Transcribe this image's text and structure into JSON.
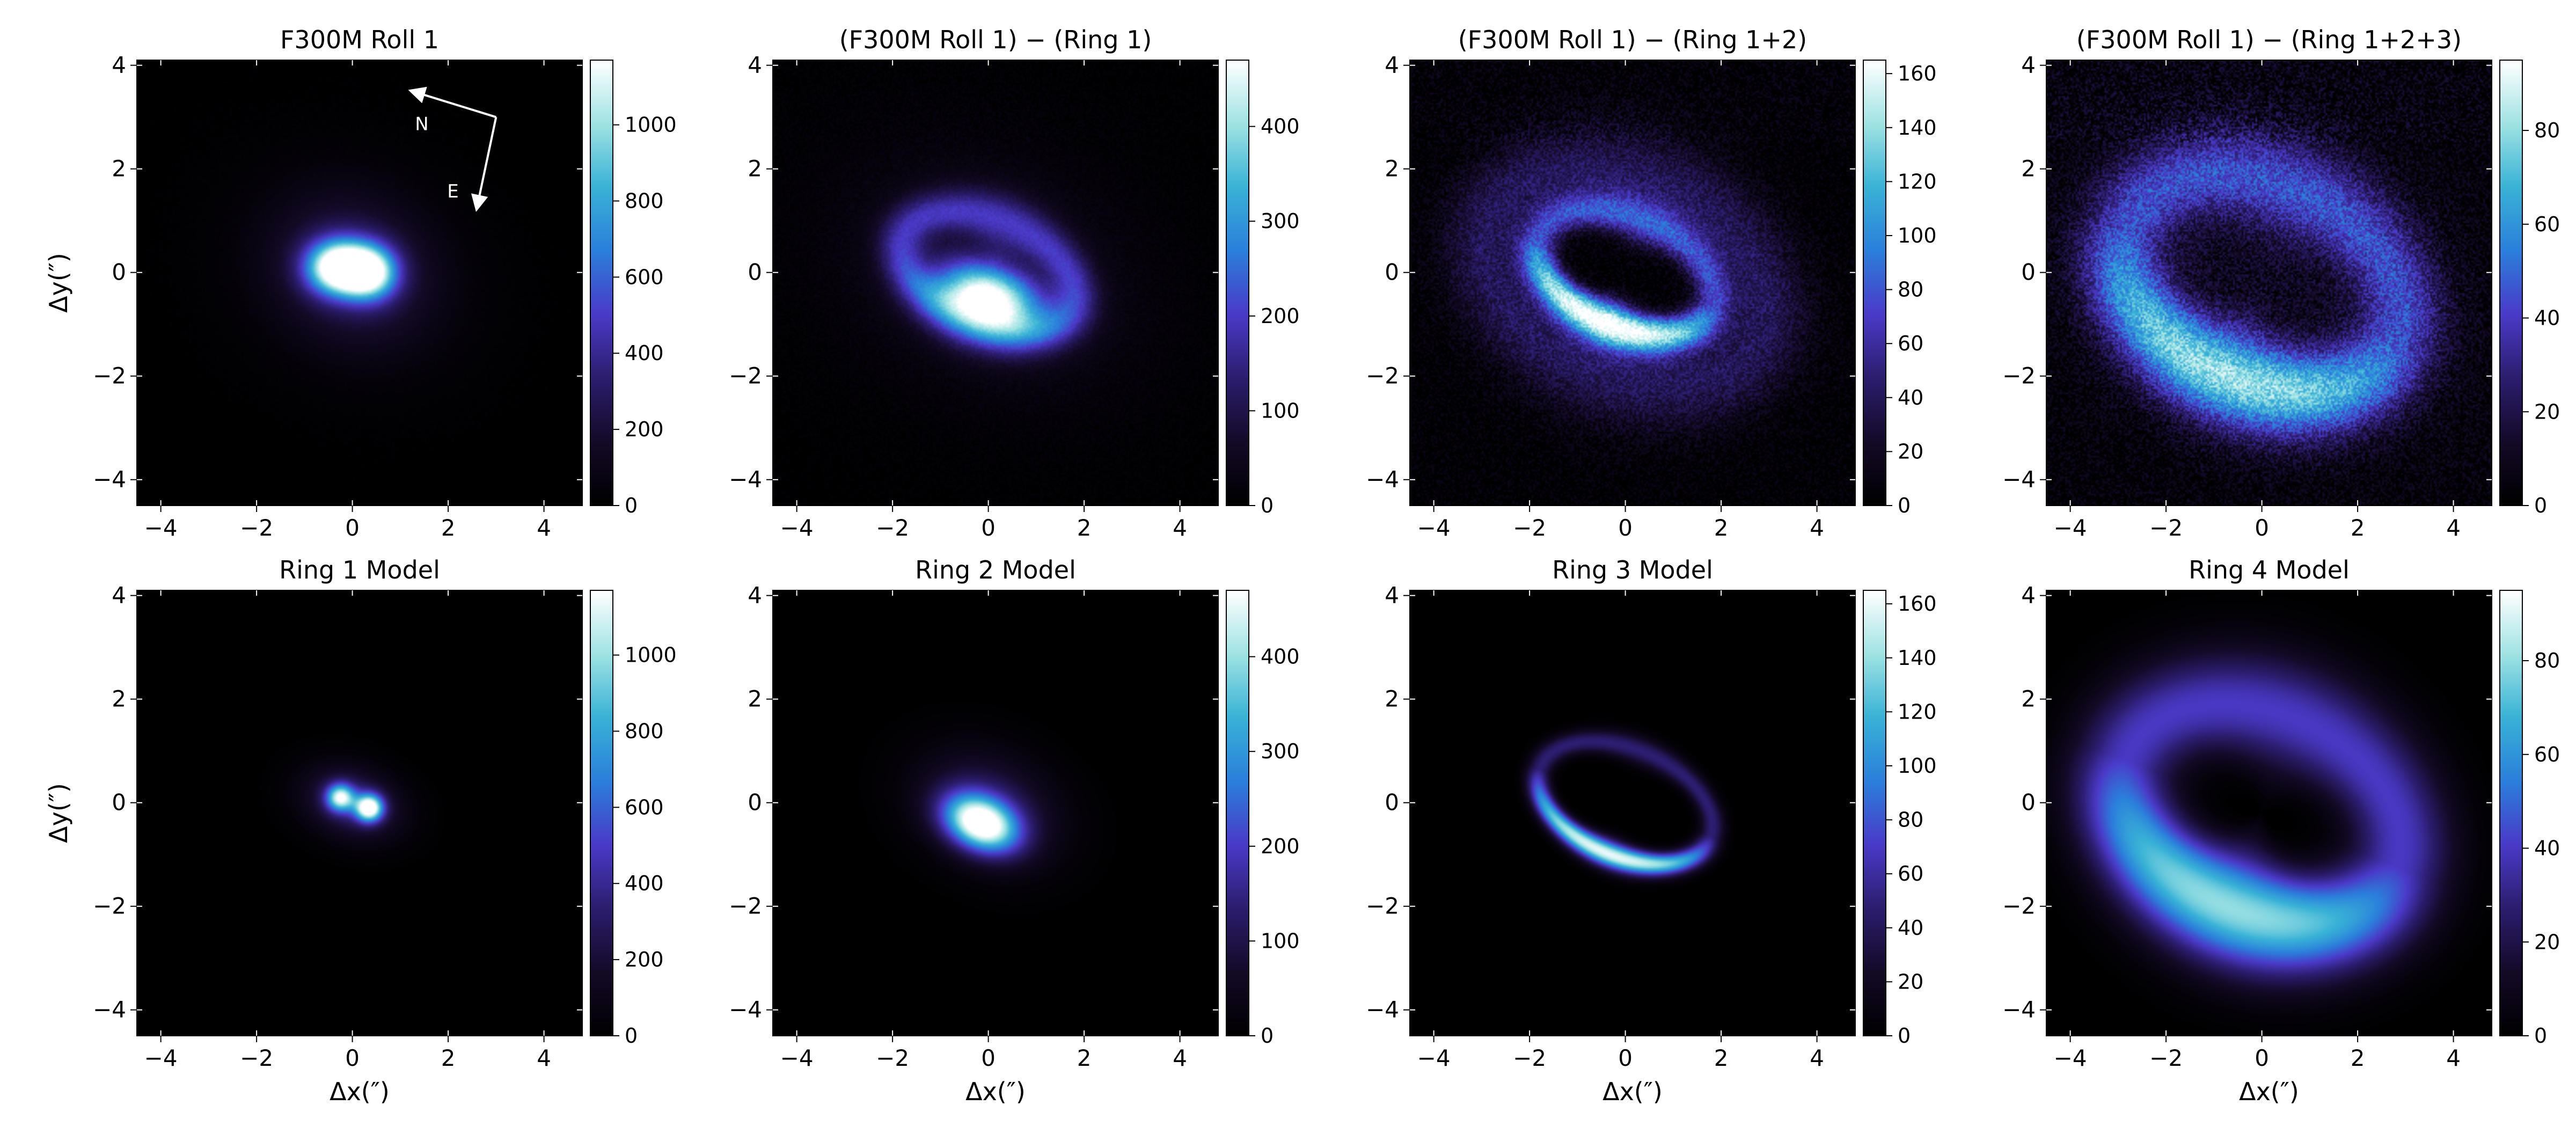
{
  "colors": {
    "colormap": [
      "#000000",
      "#140a28",
      "#2c1d6e",
      "#4a3ac8",
      "#2b7fdb",
      "#38b2d6",
      "#9fe3e3",
      "#ffffff"
    ],
    "annotation": "#ffffff",
    "axis": "#000000"
  },
  "chart_data": [
    {
      "type": "heatmap",
      "title": "F300M Roll 1",
      "xlabel": "",
      "ylabel": "Δy(″)",
      "xlim": [
        -4.5,
        4.8
      ],
      "ylim": [
        -4.5,
        4.1
      ],
      "xticks": [
        "−4",
        "−2",
        "0",
        "2",
        "4"
      ],
      "yticks": [
        "−4",
        "−2",
        "0",
        "2",
        "4"
      ],
      "colorbar": {
        "min": 0,
        "max": 1170,
        "ticks": [
          0,
          200,
          400,
          600,
          800,
          1000
        ]
      },
      "components": [
        {
          "shape": "blob",
          "cx": -0.3,
          "cy": 0.1,
          "sigma_x": 0.45,
          "sigma_y": 0.35,
          "angle": 0,
          "peak": 1150
        },
        {
          "shape": "blob",
          "cx": 0.35,
          "cy": 0.0,
          "sigma_x": 0.4,
          "sigma_y": 0.35,
          "angle": 0,
          "peak": 1000
        },
        {
          "shape": "blob",
          "cx": 0.0,
          "cy": 0.05,
          "sigma_x": 1.1,
          "sigma_y": 0.9,
          "angle": -20,
          "peak": 300
        },
        {
          "shape": "blob",
          "cx": 0.0,
          "cy": 0.0,
          "sigma_x": 2.2,
          "sigma_y": 1.7,
          "angle": -20,
          "peak": 45
        }
      ],
      "noise": 0.02,
      "compass": {
        "north_label": "N",
        "east_label": "E"
      }
    },
    {
      "type": "heatmap",
      "title": "(F300M Roll 1) − (Ring 1)",
      "xlabel": "",
      "ylabel": "",
      "xlim": [
        -4.5,
        4.8
      ],
      "ylim": [
        -4.5,
        4.1
      ],
      "xticks": [
        "−4",
        "−2",
        "0",
        "2",
        "4"
      ],
      "yticks": [
        "−4",
        "−2",
        "0",
        "2",
        "4"
      ],
      "colorbar": {
        "min": 0,
        "max": 470,
        "ticks": [
          0,
          100,
          200,
          300,
          400
        ]
      },
      "components": [
        {
          "shape": "blob",
          "cx": 0.0,
          "cy": -0.5,
          "sigma_x": 0.8,
          "sigma_y": 0.45,
          "angle": -15,
          "peak": 470
        },
        {
          "shape": "ring",
          "cx": 0.0,
          "cy": 0.0,
          "radius_x": 1.9,
          "radius_y": 1.05,
          "angle": -20,
          "width": 0.35,
          "peak": 160
        },
        {
          "shape": "blob",
          "cx": 0.0,
          "cy": 0.0,
          "sigma_x": 2.6,
          "sigma_y": 1.8,
          "angle": -20,
          "peak": 45
        }
      ],
      "noise": 0.06
    },
    {
      "type": "heatmap",
      "title": "(F300M Roll 1) − (Ring 1+2)",
      "xlabel": "",
      "ylabel": "",
      "xlim": [
        -4.5,
        4.8
      ],
      "ylim": [
        -4.5,
        4.1
      ],
      "xticks": [
        "−4",
        "−2",
        "0",
        "2",
        "4"
      ],
      "yticks": [
        "−4",
        "−2",
        "0",
        "2",
        "4"
      ],
      "colorbar": {
        "min": 0,
        "max": 165,
        "ticks": [
          0,
          20,
          40,
          60,
          80,
          100,
          120,
          140,
          160
        ]
      },
      "components": [
        {
          "shape": "ring",
          "cx": 0.0,
          "cy": 0.0,
          "radius_x": 1.9,
          "radius_y": 1.05,
          "angle": -20,
          "width": 0.3,
          "peak": 160,
          "front_boost": 0.6
        },
        {
          "shape": "ring",
          "cx": 0.0,
          "cy": -0.1,
          "radius_x": 3.0,
          "radius_y": 1.9,
          "angle": -20,
          "width": 0.7,
          "peak": 40
        }
      ],
      "noise": 0.25
    },
    {
      "type": "heatmap",
      "title": "(F300M Roll 1) − (Ring 1+2+3)",
      "xlabel": "",
      "ylabel": "",
      "xlim": [
        -4.5,
        4.8
      ],
      "ylim": [
        -4.5,
        4.1
      ],
      "xticks": [
        "−4",
        "−2",
        "0",
        "2",
        "4"
      ],
      "yticks": [
        "−4",
        "−2",
        "0",
        "2",
        "4"
      ],
      "colorbar": {
        "min": 0,
        "max": 95,
        "ticks": [
          0,
          20,
          40,
          60,
          80
        ]
      },
      "components": [
        {
          "shape": "ring",
          "cx": 0.0,
          "cy": -0.2,
          "radius_x": 3.0,
          "radius_y": 1.95,
          "angle": -20,
          "width": 0.65,
          "peak": 75,
          "front_boost": 0.5
        },
        {
          "shape": "blob",
          "cx": 0.0,
          "cy": 0.0,
          "sigma_x": 3.5,
          "sigma_y": 2.5,
          "angle": -20,
          "peak": 10
        }
      ],
      "noise": 0.35
    },
    {
      "type": "heatmap",
      "title": "Ring 1 Model",
      "xlabel": "Δx(″)",
      "ylabel": "Δy(″)",
      "xlim": [
        -4.5,
        4.8
      ],
      "ylim": [
        -4.5,
        4.1
      ],
      "xticks": [
        "−4",
        "−2",
        "0",
        "2",
        "4"
      ],
      "yticks": [
        "−4",
        "−2",
        "0",
        "2",
        "4"
      ],
      "colorbar": {
        "min": 0,
        "max": 1170,
        "ticks": [
          0,
          200,
          400,
          600,
          800,
          1000
        ]
      },
      "components": [
        {
          "shape": "blob",
          "cx": -0.25,
          "cy": 0.1,
          "sigma_x": 0.2,
          "sigma_y": 0.18,
          "angle": 0,
          "peak": 900
        },
        {
          "shape": "blob",
          "cx": 0.35,
          "cy": -0.1,
          "sigma_x": 0.2,
          "sigma_y": 0.18,
          "angle": 0,
          "peak": 1150
        },
        {
          "shape": "blob",
          "cx": 0.0,
          "cy": 0.0,
          "sigma_x": 0.7,
          "sigma_y": 0.45,
          "angle": -15,
          "peak": 350
        }
      ],
      "noise": 0.0
    },
    {
      "type": "heatmap",
      "title": "Ring 2 Model",
      "xlabel": "Δx(″)",
      "ylabel": "",
      "xlim": [
        -4.5,
        4.8
      ],
      "ylim": [
        -4.5,
        4.1
      ],
      "xticks": [
        "−4",
        "−2",
        "0",
        "2",
        "4"
      ],
      "yticks": [
        "−4",
        "−2",
        "0",
        "2",
        "4"
      ],
      "colorbar": {
        "min": 0,
        "max": 470,
        "ticks": [
          0,
          100,
          200,
          300,
          400
        ]
      },
      "components": [
        {
          "shape": "blob",
          "cx": -0.15,
          "cy": -0.4,
          "sigma_x": 0.55,
          "sigma_y": 0.35,
          "angle": -20,
          "peak": 470
        },
        {
          "shape": "blob",
          "cx": 0.0,
          "cy": -0.1,
          "sigma_x": 1.0,
          "sigma_y": 0.7,
          "angle": -20,
          "peak": 120
        }
      ],
      "noise": 0.0
    },
    {
      "type": "heatmap",
      "title": "Ring 3 Model",
      "xlabel": "Δx(″)",
      "ylabel": "",
      "xlim": [
        -4.5,
        4.8
      ],
      "ylim": [
        -4.5,
        4.1
      ],
      "xticks": [
        "−4",
        "−2",
        "0",
        "2",
        "4"
      ],
      "yticks": [
        "−4",
        "−2",
        "0",
        "2",
        "4"
      ],
      "colorbar": {
        "min": 0,
        "max": 165,
        "ticks": [
          0,
          20,
          40,
          60,
          80,
          100,
          120,
          140,
          160
        ]
      },
      "components": [
        {
          "shape": "ring",
          "cx": 0.0,
          "cy": 0.0,
          "radius_x": 1.9,
          "radius_y": 1.05,
          "angle": -20,
          "width": 0.18,
          "peak": 160,
          "front_boost": 0.7
        }
      ],
      "noise": 0.0
    },
    {
      "type": "heatmap",
      "title": "Ring 4 Model",
      "xlabel": "Δx(″)",
      "ylabel": "",
      "xlim": [
        -4.5,
        4.8
      ],
      "ylim": [
        -4.5,
        4.1
      ],
      "xticks": [
        "−4",
        "−2",
        "0",
        "2",
        "4"
      ],
      "yticks": [
        "−4",
        "−2",
        "0",
        "2",
        "4"
      ],
      "colorbar": {
        "min": 0,
        "max": 95,
        "ticks": [
          0,
          20,
          40,
          60,
          80
        ]
      },
      "components": [
        {
          "shape": "ring",
          "cx": 0.0,
          "cy": -0.2,
          "radius_x": 3.0,
          "radius_y": 1.95,
          "angle": -20,
          "width": 0.75,
          "peak": 80,
          "front_boost": 0.5
        }
      ],
      "noise": 0.0
    }
  ]
}
